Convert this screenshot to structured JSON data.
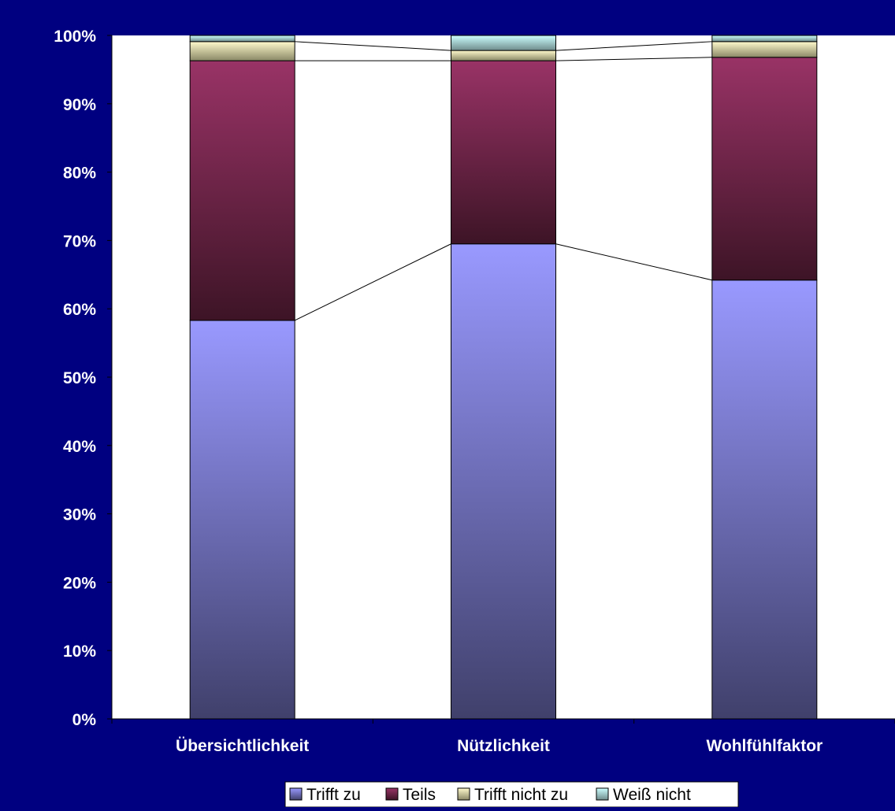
{
  "chart_data": {
    "type": "bar",
    "stacked": true,
    "percent_stacked": true,
    "categories": [
      "Übersichtlichkeit",
      "Nützlichkeit",
      "Wohlfühlfaktor"
    ],
    "series": [
      {
        "name": "Trifft zu",
        "values": [
          58.3,
          69.5,
          64.2
        ],
        "color_top": "#9999ff",
        "color_bottom": "#40406b"
      },
      {
        "name": "Teils",
        "values": [
          38.0,
          26.8,
          32.6
        ],
        "color_top": "#993366",
        "color_bottom": "#3d1426"
      },
      {
        "name": "Trifft nicht zu",
        "values": [
          2.8,
          1.5,
          2.3
        ],
        "color_top": "#fffacc",
        "color_bottom": "#8a8866"
      },
      {
        "name": "Weiß nicht",
        "values": [
          0.9,
          2.2,
          0.9
        ],
        "color_top": "#ccffff",
        "color_bottom": "#6f8b8b"
      }
    ],
    "yticks": [
      "0%",
      "10%",
      "20%",
      "30%",
      "40%",
      "50%",
      "60%",
      "70%",
      "80%",
      "90%",
      "100%"
    ],
    "ylim": [
      0,
      100
    ],
    "series_lines": true,
    "grid": false,
    "legend_position": "bottom",
    "title": "",
    "xlabel": "",
    "ylabel": "",
    "colors": {
      "background": "#000080",
      "plot_area": "#ffffff",
      "text": "#ffffff"
    }
  }
}
